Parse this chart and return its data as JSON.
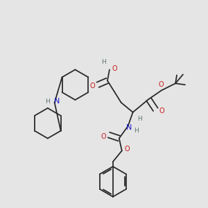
{
  "background_color": "#e5e5e5",
  "line_color": "#2a2a2a",
  "colors": {
    "H": "#5a7070",
    "N": "#1a1acc",
    "O": "#cc1a1a",
    "C": "#2a2a2a"
  },
  "lw": 1.3,
  "dbo": 0.008
}
